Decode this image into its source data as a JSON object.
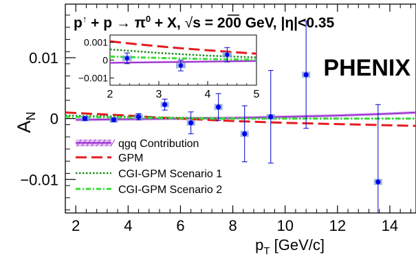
{
  "chart_data": [
    {
      "type": "scatter",
      "title_parts": {
        "lhs": "p",
        "arrow_sup": "↑",
        "plus1": " + p ",
        "arrow": "→",
        "pi": " π",
        "pi_sup": "0",
        "rest": " + X,  ",
        "sqrt": "√",
        "energy": "s = 200 GeV, |η|<0.35"
      },
      "experiment_label": "PHENIX",
      "xlabel": "p",
      "xlabel_sub": "T",
      "xlabel_unit": " [GeV/c]",
      "ylabel": "A",
      "ylabel_sub": "N",
      "xlim": [
        1.6,
        15.0
      ],
      "ylim": [
        -0.0155,
        0.0188
      ],
      "x_ticks": [
        2,
        4,
        6,
        8,
        10,
        12,
        14
      ],
      "x_tick_labels": [
        "2",
        "4",
        "6",
        "8",
        "10",
        "12",
        "14"
      ],
      "y_ticks": [
        -0.01,
        0,
        0.01
      ],
      "y_tick_labels": [
        "−0.01",
        "0",
        "0.01"
      ],
      "data_points": [
        {
          "x": 2.35,
          "y": 0.0,
          "err": 0.0003,
          "sys": 0.0003
        },
        {
          "x": 3.45,
          "y": -0.0002,
          "err": 0.0003,
          "sys": 0.0002
        },
        {
          "x": 4.4,
          "y": 0.0003,
          "err": 0.0005,
          "sys": 0.0002
        },
        {
          "x": 5.4,
          "y": 0.0023,
          "err": 0.0009,
          "sys": 0.0004
        },
        {
          "x": 6.4,
          "y": -0.0007,
          "err": 0.0018,
          "sys": 0.0004
        },
        {
          "x": 7.45,
          "y": 0.0019,
          "err": 0.0022,
          "sys": 0.0005
        },
        {
          "x": 8.45,
          "y": -0.0025,
          "err": 0.0046,
          "sys": 0.0005
        },
        {
          "x": 9.45,
          "y": 0.0003,
          "err": 0.0076,
          "sys": 0.0004
        },
        {
          "x": 10.8,
          "y": 0.0072,
          "err": 0.0088,
          "sys": 0.0005
        },
        {
          "x": 13.55,
          "y": -0.0104,
          "err": 0.0127,
          "sys": 0.0005
        }
      ],
      "series": [
        {
          "name": "qgq Contribution",
          "style": "band",
          "color": "#9b30d0",
          "x": [
            2,
            4,
            6,
            8,
            10,
            12,
            14,
            15
          ],
          "y": [
            -0.0002,
            -0.0001,
            0.0,
            0.0001,
            0.0003,
            0.0005,
            0.0008,
            0.001
          ]
        },
        {
          "name": "GPM",
          "style": "long-dash",
          "color": "#e41a1c",
          "x": [
            1.6,
            3,
            4,
            5,
            6,
            7,
            8,
            10,
            12,
            14,
            15
          ],
          "y": [
            0.001,
            0.0007,
            0.0005,
            0.0002,
            0.0,
            -0.0002,
            -0.0004,
            -0.0007,
            -0.0009,
            -0.0011,
            -0.0012
          ]
        },
        {
          "name": "CGI-GPM Scenario 1",
          "style": "dotted",
          "color": "#1a8a1a",
          "x": [
            1.6,
            3,
            5,
            7,
            9,
            11,
            13,
            15
          ],
          "y": [
            0.0005,
            0.0004,
            0.0002,
            0.0001,
            0.0,
            0.0,
            0.0,
            0.0
          ]
        },
        {
          "name": "CGI-GPM Scenario 2",
          "style": "dash-dot",
          "color": "#33dd33",
          "x": [
            1.6,
            3,
            5,
            7,
            9,
            11,
            13,
            15
          ],
          "y": [
            0.0003,
            0.0002,
            0.0001,
            0.0,
            0.0,
            0.0,
            0.0,
            0.0
          ]
        }
      ],
      "legend": [
        "qgq Contribution",
        "GPM",
        "CGI-GPM Scenario 1",
        "CGI-GPM Scenario 2"
      ],
      "legend_position": "bottom-left"
    },
    {
      "type": "scatter",
      "role": "inset",
      "xlim": [
        2,
        5
      ],
      "ylim": [
        -0.0014,
        0.0014
      ],
      "x_ticks": [
        2,
        3,
        4,
        5
      ],
      "x_tick_labels": [
        "2",
        "3",
        "4",
        "5"
      ],
      "y_ticks": [
        -0.001,
        0,
        0.001
      ],
      "y_tick_labels": [
        "−0.001",
        "0",
        "0.001"
      ],
      "data_points": [
        {
          "x": 2.35,
          "y": 0.0001,
          "err": 0.0003,
          "sys": 0.0001
        },
        {
          "x": 3.45,
          "y": -0.0003,
          "err": 0.0003,
          "sys": 0.0001
        },
        {
          "x": 4.4,
          "y": 0.0003,
          "err": 0.0004,
          "sys": 0.0001
        }
      ],
      "series": [
        {
          "name": "qgq Contribution",
          "style": "band",
          "color": "#9b30d0",
          "x": [
            2,
            5
          ],
          "y": [
            -0.00015,
            -5e-05
          ]
        },
        {
          "name": "GPM",
          "style": "long-dash",
          "color": "#e41a1c",
          "x": [
            2,
            2.5,
            3,
            3.5,
            4,
            4.5,
            5
          ],
          "y": [
            0.00105,
            0.0009,
            0.00077,
            0.00065,
            0.00055,
            0.00045,
            0.00036
          ]
        },
        {
          "name": "CGI-GPM Scenario 1",
          "style": "dotted",
          "color": "#1a8a1a",
          "x": [
            2,
            3,
            4,
            5
          ],
          "y": [
            0.0006,
            0.0004,
            0.00025,
            0.00015
          ]
        },
        {
          "name": "CGI-GPM Scenario 2",
          "style": "dash-dot",
          "color": "#33dd33",
          "x": [
            2,
            3,
            4,
            5
          ],
          "y": [
            0.0002,
            0.00012,
            6e-05,
            2e-05
          ]
        }
      ]
    }
  ]
}
